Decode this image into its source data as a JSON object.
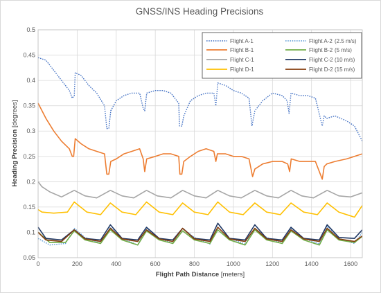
{
  "chart_data": {
    "type": "line",
    "title": "GNSS/INS Heading Precisions",
    "xlabel": {
      "main": "Flight Path Distance",
      "unit": "[meters]"
    },
    "ylabel": {
      "main": "Heading Precision",
      "unit": "[degrees]"
    },
    "xlim": [
      0,
      1660
    ],
    "ylim": [
      0.05,
      0.5
    ],
    "xticks": [
      "0",
      "200",
      "400",
      "600",
      "800",
      "1000",
      "1200",
      "1400",
      "1600"
    ],
    "yticks": [
      "0.05",
      "0.1",
      "0.15",
      "0.2",
      "0.25",
      "0.3",
      "0.35",
      "0.4",
      "0.45",
      "0.5"
    ],
    "grid": true,
    "legend_position": "top-right",
    "speed_labels": [
      "(2.5 m/s)",
      "(5 m/s)",
      "(10 m/s)",
      "(15 m/s)"
    ],
    "series": [
      {
        "name": "Flight A-1",
        "color": "#4472c4",
        "dashed": true,
        "x": [
          0,
          40,
          80,
          120,
          160,
          175,
          185,
          190,
          220,
          260,
          300,
          340,
          352,
          362,
          372,
          400,
          440,
          480,
          520,
          538,
          546,
          556,
          600,
          640,
          680,
          720,
          724,
          736,
          746,
          780,
          820,
          860,
          900,
          910,
          920,
          960,
          1000,
          1040,
          1080,
          1095,
          1110,
          1150,
          1200,
          1250,
          1275,
          1285,
          1295,
          1340,
          1380,
          1420,
          1455,
          1465,
          1478,
          1520,
          1580,
          1620,
          1660
        ],
        "y": [
          0.445,
          0.44,
          0.42,
          0.4,
          0.38,
          0.365,
          0.37,
          0.415,
          0.41,
          0.39,
          0.375,
          0.35,
          0.305,
          0.305,
          0.34,
          0.36,
          0.37,
          0.375,
          0.375,
          0.345,
          0.34,
          0.375,
          0.38,
          0.38,
          0.375,
          0.355,
          0.31,
          0.31,
          0.33,
          0.36,
          0.37,
          0.375,
          0.375,
          0.35,
          0.395,
          0.39,
          0.38,
          0.375,
          0.365,
          0.31,
          0.34,
          0.36,
          0.375,
          0.37,
          0.36,
          0.335,
          0.375,
          0.37,
          0.37,
          0.365,
          0.31,
          0.33,
          0.325,
          0.33,
          0.32,
          0.31,
          0.28
        ]
      },
      {
        "name": "Flight A-2",
        "color": "#5b9bd5",
        "dashed": true,
        "x": [
          0,
          60,
          140,
          185,
          240,
          320,
          370,
          430,
          510,
          555,
          620,
          690,
          740,
          800,
          880,
          920,
          980,
          1060,
          1110,
          1170,
          1250,
          1295,
          1360,
          1440,
          1480,
          1540,
          1620,
          1660
        ],
        "y": [
          0.088,
          0.075,
          0.078,
          0.108,
          0.09,
          0.078,
          0.11,
          0.088,
          0.075,
          0.108,
          0.088,
          0.078,
          0.108,
          0.09,
          0.077,
          0.11,
          0.088,
          0.077,
          0.108,
          0.09,
          0.078,
          0.108,
          0.088,
          0.077,
          0.112,
          0.088,
          0.078,
          0.1
        ]
      },
      {
        "name": "Flight B-1",
        "color": "#ed7d31",
        "dashed": false,
        "x": [
          0,
          40,
          80,
          120,
          160,
          175,
          182,
          190,
          220,
          260,
          300,
          340,
          352,
          362,
          372,
          400,
          440,
          480,
          520,
          538,
          546,
          556,
          600,
          640,
          680,
          720,
          726,
          736,
          746,
          780,
          820,
          860,
          900,
          910,
          918,
          960,
          1000,
          1040,
          1080,
          1098,
          1110,
          1150,
          1200,
          1250,
          1278,
          1288,
          1296,
          1340,
          1380,
          1420,
          1455,
          1465,
          1478,
          1520,
          1580,
          1620,
          1660
        ],
        "y": [
          0.355,
          0.325,
          0.3,
          0.28,
          0.265,
          0.25,
          0.25,
          0.285,
          0.275,
          0.265,
          0.26,
          0.255,
          0.215,
          0.215,
          0.24,
          0.245,
          0.255,
          0.26,
          0.265,
          0.245,
          0.22,
          0.245,
          0.25,
          0.255,
          0.255,
          0.25,
          0.215,
          0.215,
          0.24,
          0.25,
          0.26,
          0.265,
          0.26,
          0.24,
          0.255,
          0.255,
          0.25,
          0.25,
          0.245,
          0.21,
          0.225,
          0.235,
          0.24,
          0.24,
          0.235,
          0.22,
          0.245,
          0.24,
          0.24,
          0.24,
          0.205,
          0.23,
          0.235,
          0.24,
          0.245,
          0.25,
          0.255
        ]
      },
      {
        "name": "Flight B-2",
        "color": "#70ad47",
        "dashed": false,
        "x": [
          0,
          60,
          140,
          185,
          240,
          320,
          370,
          430,
          510,
          555,
          620,
          690,
          740,
          800,
          880,
          920,
          980,
          1060,
          1110,
          1170,
          1250,
          1295,
          1360,
          1440,
          1480,
          1540,
          1620,
          1660
        ],
        "y": [
          0.1,
          0.08,
          0.08,
          0.103,
          0.085,
          0.078,
          0.105,
          0.085,
          0.075,
          0.103,
          0.085,
          0.078,
          0.103,
          0.085,
          0.078,
          0.105,
          0.085,
          0.075,
          0.105,
          0.085,
          0.078,
          0.103,
          0.085,
          0.075,
          0.105,
          0.085,
          0.08,
          0.092
        ]
      },
      {
        "name": "Flight C-1",
        "color": "#a5a5a5",
        "dashed": false,
        "x": [
          0,
          20,
          60,
          120,
          185,
          240,
          300,
          370,
          430,
          490,
          555,
          610,
          680,
          740,
          800,
          860,
          920,
          980,
          1040,
          1110,
          1170,
          1230,
          1295,
          1350,
          1410,
          1480,
          1540,
          1600,
          1660
        ],
        "y": [
          0.2,
          0.19,
          0.18,
          0.17,
          0.183,
          0.172,
          0.168,
          0.183,
          0.172,
          0.168,
          0.183,
          0.172,
          0.168,
          0.183,
          0.172,
          0.168,
          0.183,
          0.172,
          0.168,
          0.183,
          0.172,
          0.168,
          0.183,
          0.172,
          0.168,
          0.183,
          0.172,
          0.17,
          0.178
        ]
      },
      {
        "name": "Flight C-2",
        "color": "#203864",
        "dashed": false,
        "x": [
          0,
          40,
          120,
          185,
          240,
          320,
          370,
          430,
          510,
          555,
          620,
          690,
          740,
          800,
          880,
          920,
          980,
          1060,
          1110,
          1170,
          1250,
          1295,
          1360,
          1440,
          1480,
          1540,
          1620,
          1660
        ],
        "y": [
          0.11,
          0.088,
          0.085,
          0.105,
          0.088,
          0.085,
          0.115,
          0.088,
          0.085,
          0.11,
          0.088,
          0.085,
          0.108,
          0.088,
          0.085,
          0.118,
          0.088,
          0.085,
          0.115,
          0.088,
          0.085,
          0.11,
          0.088,
          0.085,
          0.115,
          0.09,
          0.088,
          0.105
        ]
      },
      {
        "name": "Flight D-1",
        "color": "#ffc000",
        "dashed": false,
        "x": [
          0,
          20,
          80,
          150,
          185,
          250,
          320,
          370,
          430,
          500,
          555,
          620,
          690,
          740,
          800,
          870,
          920,
          980,
          1050,
          1110,
          1170,
          1240,
          1295,
          1360,
          1430,
          1480,
          1540,
          1620,
          1660
        ],
        "y": [
          0.145,
          0.14,
          0.138,
          0.14,
          0.16,
          0.14,
          0.135,
          0.158,
          0.14,
          0.135,
          0.16,
          0.14,
          0.135,
          0.158,
          0.14,
          0.135,
          0.16,
          0.14,
          0.135,
          0.158,
          0.14,
          0.135,
          0.158,
          0.14,
          0.135,
          0.158,
          0.14,
          0.13,
          0.153
        ]
      },
      {
        "name": "Flight D-2",
        "color": "#843c0c",
        "dashed": false,
        "x": [
          0,
          40,
          120,
          185,
          240,
          320,
          370,
          430,
          510,
          555,
          620,
          690,
          740,
          800,
          880,
          920,
          980,
          1060,
          1110,
          1170,
          1250,
          1295,
          1360,
          1440,
          1480,
          1540,
          1620,
          1660
        ],
        "y": [
          0.1,
          0.085,
          0.082,
          0.105,
          0.087,
          0.082,
          0.108,
          0.087,
          0.082,
          0.105,
          0.087,
          0.082,
          0.108,
          0.087,
          0.082,
          0.11,
          0.087,
          0.082,
          0.108,
          0.087,
          0.082,
          0.105,
          0.087,
          0.082,
          0.108,
          0.087,
          0.082,
          0.093
        ]
      }
    ]
  }
}
